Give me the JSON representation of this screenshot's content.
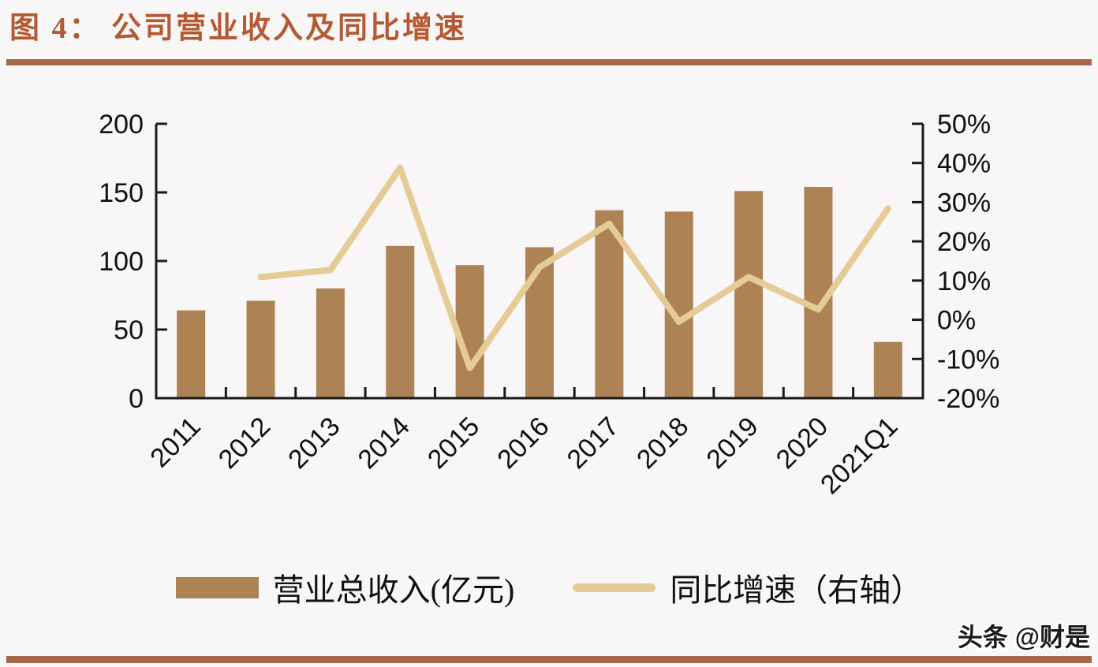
{
  "page": {
    "title": "图 4： 公司营业收入及同比增速",
    "watermark": "头条 @财是"
  },
  "legend": {
    "bar_label": "营业总收入(亿元)",
    "line_label": "同比增速（右轴）"
  },
  "colors": {
    "bar": "#AD8355",
    "line": "#E5CB96",
    "title": "#B35A33",
    "rule": "#A5694A",
    "axis": "#1A1A1A",
    "background": "#F8F6F6"
  },
  "chart_data": {
    "type": "bar+line",
    "title": "公司营业收入及同比增速",
    "categories": [
      "2011",
      "2012",
      "2013",
      "2014",
      "2015",
      "2016",
      "2017",
      "2018",
      "2019",
      "2020",
      "2021Q1"
    ],
    "series": [
      {
        "name": "营业总收入(亿元)",
        "type": "bar",
        "axis": "left",
        "values": [
          64,
          71,
          80,
          111,
          97,
          110,
          137,
          136,
          151,
          154,
          41
        ]
      },
      {
        "name": "同比增速（右轴）",
        "type": "line",
        "axis": "right",
        "values": [
          null,
          10.9,
          12.7,
          38.8,
          -12.3,
          13.4,
          24.5,
          -0.5,
          10.9,
          2.6,
          28.4
        ]
      }
    ],
    "y_left": {
      "range": [
        0,
        200
      ],
      "ticks": [
        0,
        50,
        100,
        150,
        200
      ],
      "tick_labels": [
        "0",
        "50",
        "100",
        "150",
        "200"
      ]
    },
    "y_right": {
      "range": [
        -20,
        50
      ],
      "ticks": [
        -20,
        -10,
        0,
        10,
        20,
        30,
        40,
        50
      ],
      "tick_labels": [
        "-20%",
        "-10%",
        "0%",
        "10%",
        "20%",
        "30%",
        "40%",
        "50%"
      ],
      "format": "percent"
    },
    "grid": false,
    "legend_position": "bottom",
    "x_label_rotation": 45
  }
}
